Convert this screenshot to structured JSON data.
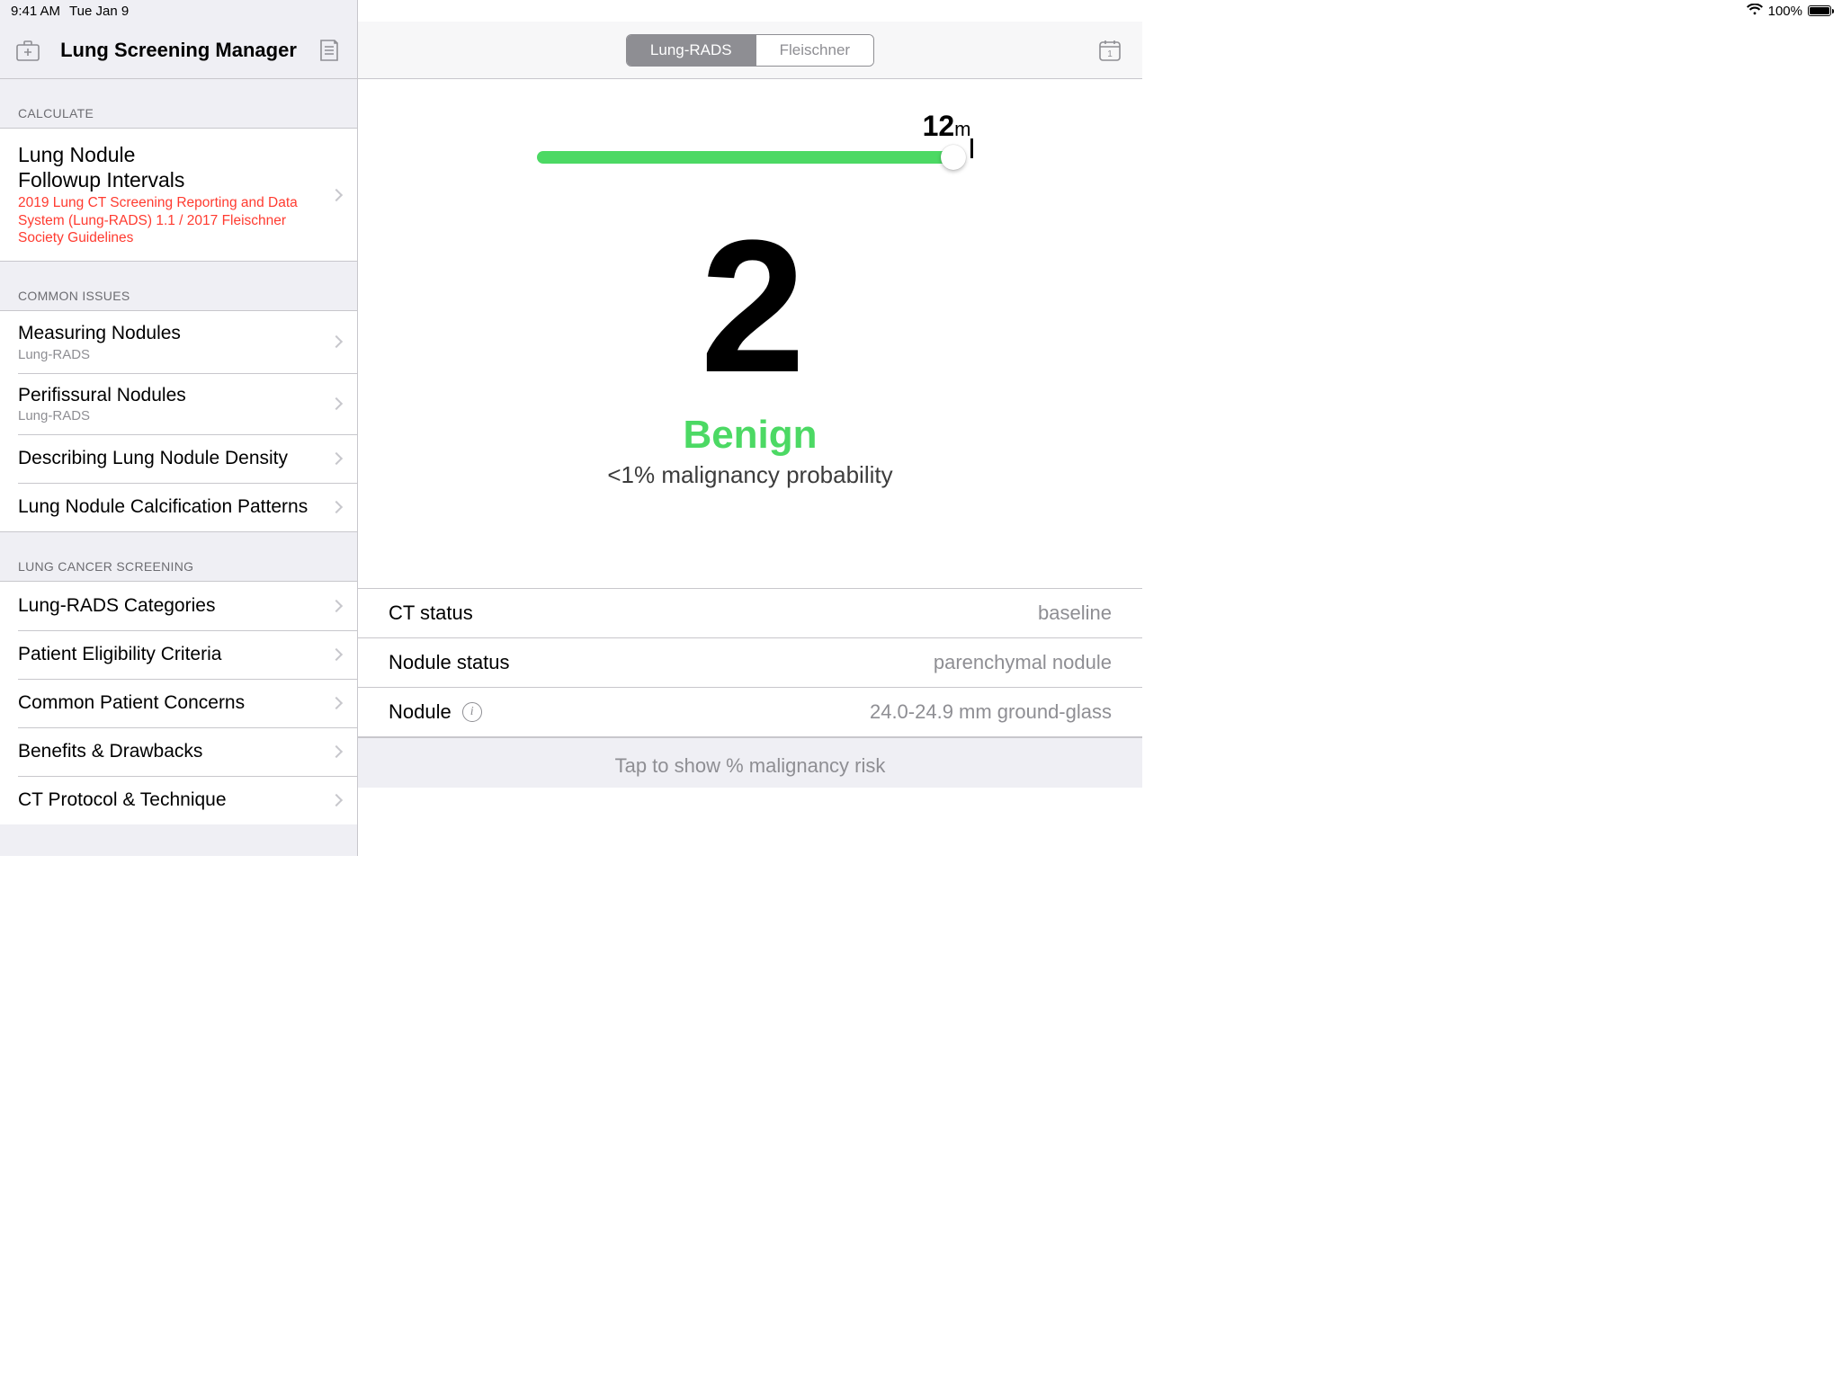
{
  "statusbar": {
    "time": "9:41 AM",
    "date": "Tue Jan 9",
    "battery_text": "100%"
  },
  "sidebar": {
    "title": "Lung Screening Manager",
    "sections": {
      "calculate": {
        "label": "CALCULATE",
        "item": {
          "title_l1": "Lung Nodule",
          "title_l2": "Followup Intervals",
          "subtitle": "2019 Lung CT Screening Reporting and Data System (Lung-RADS) 1.1 / 2017 Fleischner Society Guidelines"
        }
      },
      "common_issues": {
        "label": "COMMON ISSUES",
        "items": [
          {
            "title": "Measuring Nodules",
            "sub": "Lung-RADS"
          },
          {
            "title": "Perifissural Nodules",
            "sub": "Lung-RADS"
          },
          {
            "title": "Describing Lung Nodule Density",
            "sub": ""
          },
          {
            "title": "Lung Nodule Calcification Patterns",
            "sub": ""
          }
        ]
      },
      "screening": {
        "label": "LUNG CANCER SCREENING",
        "items": [
          {
            "title": "Lung-RADS Categories"
          },
          {
            "title": "Patient Eligibility Criteria"
          },
          {
            "title": "Common Patient Concerns"
          },
          {
            "title": "Benefits & Drawbacks"
          },
          {
            "title": "CT Protocol & Technique"
          }
        ]
      }
    }
  },
  "main": {
    "tabs": {
      "active": "Lung-RADS",
      "inactive": "Fleischner"
    },
    "calendar_day": "1",
    "slider": {
      "value_label": "12",
      "unit": "m",
      "fill_color": "#4cd964",
      "fill_pct": 100
    },
    "result": {
      "category_number": "2",
      "category_label": "Benign",
      "label_color": "#4cd964",
      "probability_text": "<1% malignancy probability"
    },
    "details": [
      {
        "key": "CT status",
        "value": "baseline",
        "info": false
      },
      {
        "key": "Nodule status",
        "value": "parenchymal nodule",
        "info": false
      },
      {
        "key": "Nodule",
        "value": "24.0-24.9 mm ground-glass",
        "info": true
      }
    ],
    "footer_cta": "Tap to show % malignancy risk"
  }
}
